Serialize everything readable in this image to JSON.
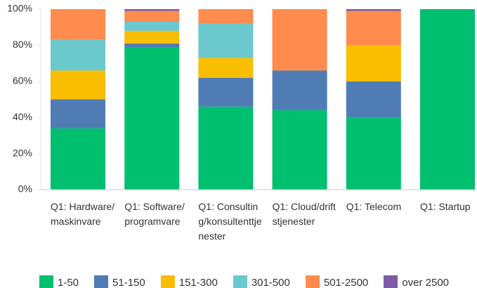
{
  "chart_data": {
    "type": "stacked_bar",
    "categories": [
      "Q1: Hardware/maskinvare",
      "Q1: Software/programvare",
      "Q1: Consulting/konsultenttjenester",
      "Q1: Cloud/driftstjenester",
      "Q1: Telecom",
      "Q1: Startup"
    ],
    "series": [
      {
        "name": "1-50",
        "color": "#00bf6f",
        "values": [
          34,
          79,
          46,
          44,
          40,
          100
        ]
      },
      {
        "name": "51-150",
        "color": "#507cb6",
        "values": [
          16,
          2,
          16,
          22,
          20,
          0
        ]
      },
      {
        "name": "151-300",
        "color": "#f9be00",
        "values": [
          16,
          7,
          11,
          0,
          20,
          0
        ]
      },
      {
        "name": "301-500",
        "color": "#6bc8cd",
        "values": [
          17,
          5,
          19,
          0,
          0,
          0
        ]
      },
      {
        "name": "501-2500",
        "color": "#ff8b4f",
        "values": [
          17,
          6,
          8,
          34,
          19,
          0
        ]
      },
      {
        "name": "over 2500",
        "color": "#7d5ba6",
        "values": [
          0,
          1,
          0,
          0,
          1,
          0
        ]
      }
    ],
    "ylim": [
      0,
      100
    ],
    "yticks": [
      {
        "value": 0,
        "label": "0%"
      },
      {
        "value": 20,
        "label": "20%"
      },
      {
        "value": 40,
        "label": "40%"
      },
      {
        "value": 60,
        "label": "60%"
      },
      {
        "value": 80,
        "label": "80%"
      },
      {
        "value": 100,
        "label": "100%"
      }
    ]
  }
}
